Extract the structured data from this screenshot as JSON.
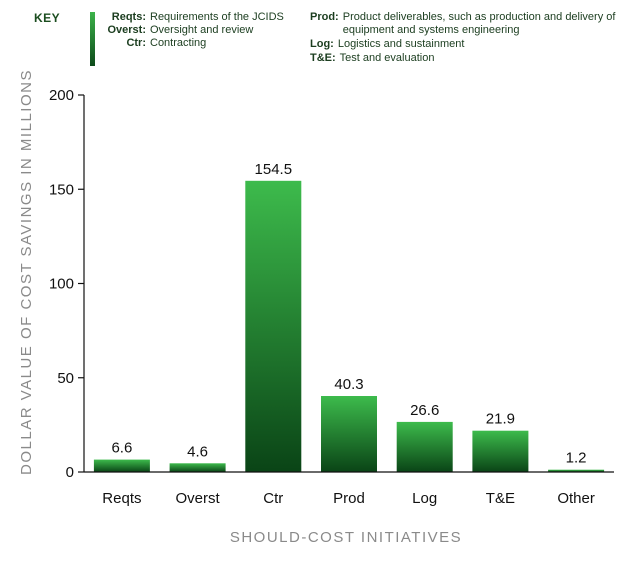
{
  "key": {
    "title": "KEY",
    "col1": [
      {
        "abbr": "Reqts:",
        "desc": "Requirements of the JCIDS"
      },
      {
        "abbr": "Overst:",
        "desc": "Oversight and review"
      },
      {
        "abbr": "Ctr:",
        "desc": "Contracting"
      }
    ],
    "col2": [
      {
        "abbr": "Prod:",
        "desc": "Product deliverables, such as production and delivery of equipment and systems engineering"
      },
      {
        "abbr": "Log:",
        "desc": "Logistics and sustainment"
      },
      {
        "abbr": "T&E:",
        "desc": "Test and evaluation"
      }
    ]
  },
  "chart_data": {
    "type": "bar",
    "categories": [
      "Reqts",
      "Overst",
      "Ctr",
      "Prod",
      "Log",
      "T&E",
      "Other"
    ],
    "values": [
      6.6,
      4.6,
      154.5,
      40.3,
      26.6,
      21.9,
      1.2
    ],
    "value_labels": [
      "6.6",
      "4.6",
      "154.5",
      "40.3",
      "26.6",
      "21.9",
      "1.2"
    ],
    "xlabel": "SHOULD-COST INITIATIVES",
    "ylabel": "DOLLAR VALUE OF COST SAVINGS IN MILLIONS",
    "ylim": [
      0,
      200
    ],
    "yticks": [
      0,
      50,
      100,
      150,
      200
    ],
    "grid": false,
    "colors": {
      "bar_light": "#3dbb4c",
      "bar_dark": "#0a4416",
      "axis": "#111111"
    }
  }
}
